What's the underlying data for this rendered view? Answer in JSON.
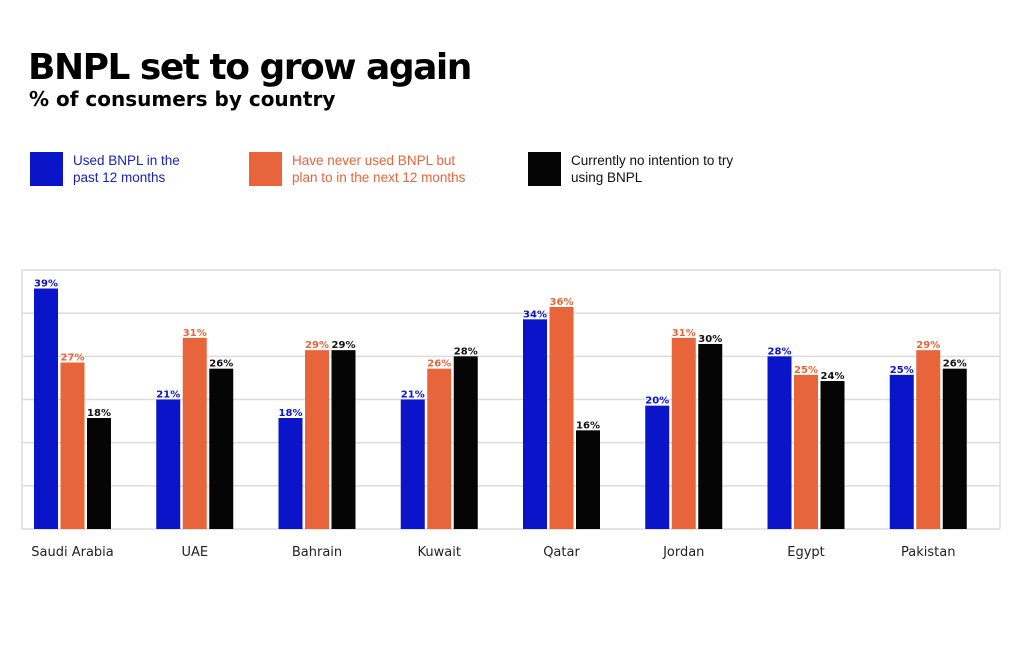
{
  "chart_data": {
    "type": "bar",
    "title": "BNPL set to grow again",
    "subtitle": "% of consumers by country",
    "xlabel": "",
    "ylabel": "",
    "ylim": [
      0,
      42
    ],
    "grid": true,
    "legend_position": "top",
    "categories": [
      "Saudi Arabia",
      "UAE",
      "Bahrain",
      "Kuwait",
      "Qatar",
      "Jordan",
      "Egypt",
      "Pakistan"
    ],
    "series": [
      {
        "name": "Used BNPL in the past 12 months",
        "color": "#0a14c8",
        "values": [
          39,
          21,
          18,
          21,
          34,
          20,
          28,
          25
        ]
      },
      {
        "name": "Have never used BNPL but plan to in the next 12 months",
        "color": "#e8643a",
        "values": [
          27,
          31,
          29,
          26,
          36,
          31,
          25,
          29
        ]
      },
      {
        "name": "Currently no intention to try using BNPL",
        "color": "#050505",
        "values": [
          18,
          26,
          29,
          28,
          16,
          30,
          24,
          26
        ]
      }
    ],
    "value_suffix": "%"
  },
  "legend": [
    {
      "line1": "Used BNPL in the",
      "line2": "past 12 months",
      "color": "#0a14c8",
      "text_color": "#1a22b8"
    },
    {
      "line1": "Have never used BNPL but",
      "line2": "plan to in the next 12 months",
      "color": "#e8643a",
      "text_color": "#e8643a"
    },
    {
      "line1": "Currently no intention to try",
      "line2": "using BNPL",
      "color": "#050505",
      "text_color": "#111111"
    }
  ]
}
